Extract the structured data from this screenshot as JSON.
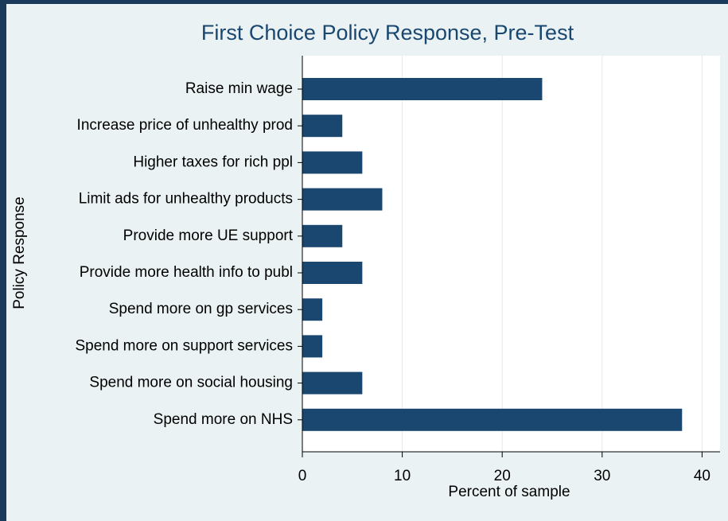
{
  "chart_data": {
    "type": "bar",
    "orientation": "horizontal",
    "title": "First Choice Policy Response, Pre-Test",
    "x_label": "Percent of sample",
    "y_label": "Policy Response",
    "categories": [
      "Raise min wage",
      "Increase price of unhealthy prod",
      "Higher taxes for rich ppl",
      "Limit ads for unhealthy products",
      "Provide more UE support",
      "Provide more health info to publ",
      "Spend more on gp services",
      "Spend more on support services",
      "Spend more on social housing",
      "Spend more on NHS"
    ],
    "values": [
      24,
      4,
      6,
      8,
      4,
      6,
      2,
      2,
      6,
      38
    ],
    "color": "#1a476f",
    "xlim": [
      0,
      41.8
    ],
    "xticks": [
      0,
      10,
      20,
      30,
      40
    ],
    "grid": true
  }
}
